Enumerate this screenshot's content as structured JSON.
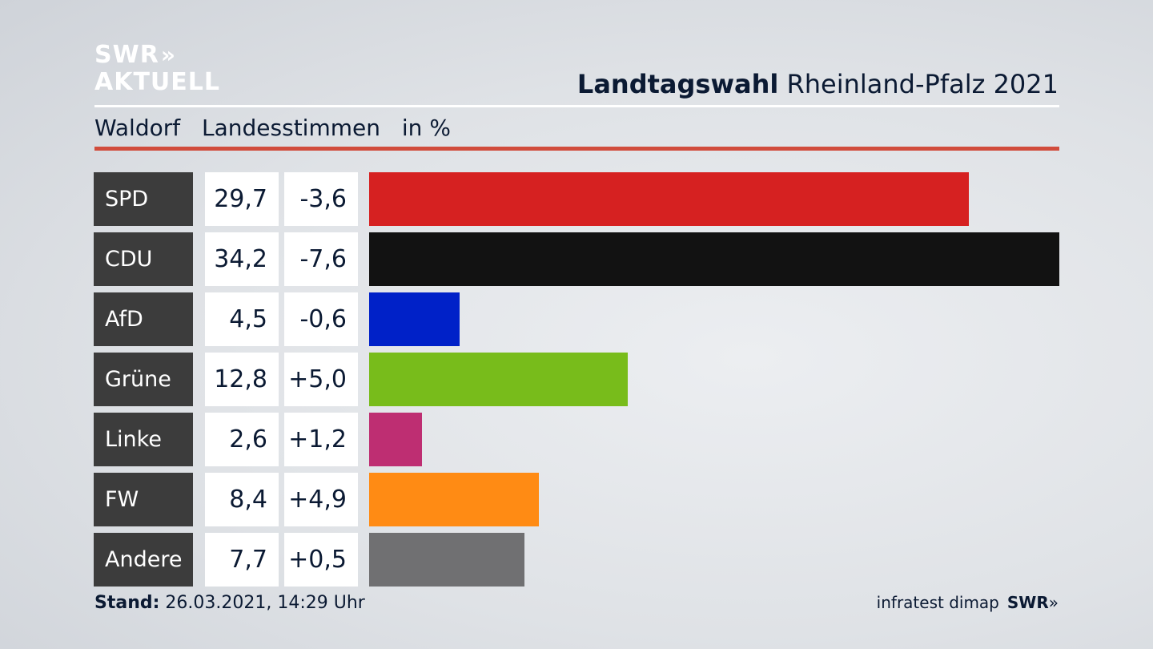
{
  "logo": {
    "line1": "SWR",
    "line2": "AKTUELL",
    "chevrons": "»"
  },
  "header": {
    "title_bold": "Landtagswahl",
    "title_rest": "Rheinland-Pfalz 2021",
    "district": "Waldorf",
    "vote_type": "Landesstimmen",
    "unit": "in %"
  },
  "footer": {
    "stand_label": "Stand:",
    "stand_value": "26.03.2021, 14:29 Uhr",
    "source": "infratest dimap",
    "source_brand": "SWR",
    "source_chevrons": "»"
  },
  "chart_data": {
    "type": "bar",
    "orientation": "horizontal",
    "categories": [
      "SPD",
      "CDU",
      "AfD",
      "Grüne",
      "Linke",
      "FW",
      "Andere"
    ],
    "values": [
      29.7,
      34.2,
      4.5,
      12.8,
      2.6,
      8.4,
      7.7
    ],
    "value_labels": [
      "29,7",
      "34,2",
      "4,5",
      "12,8",
      "2,6",
      "8,4",
      "7,7"
    ],
    "diff_labels": [
      "-3,6",
      "-7,6",
      "-0,6",
      "+5,0",
      "+1,2",
      "+4,9",
      "+0,5"
    ],
    "colors": [
      "#d62121",
      "#121212",
      "#0021c8",
      "#78bc1b",
      "#be2e72",
      "#ff8b14",
      "#707072"
    ],
    "xlim": [
      0,
      34.2
    ],
    "grid": false,
    "legend": "none"
  }
}
